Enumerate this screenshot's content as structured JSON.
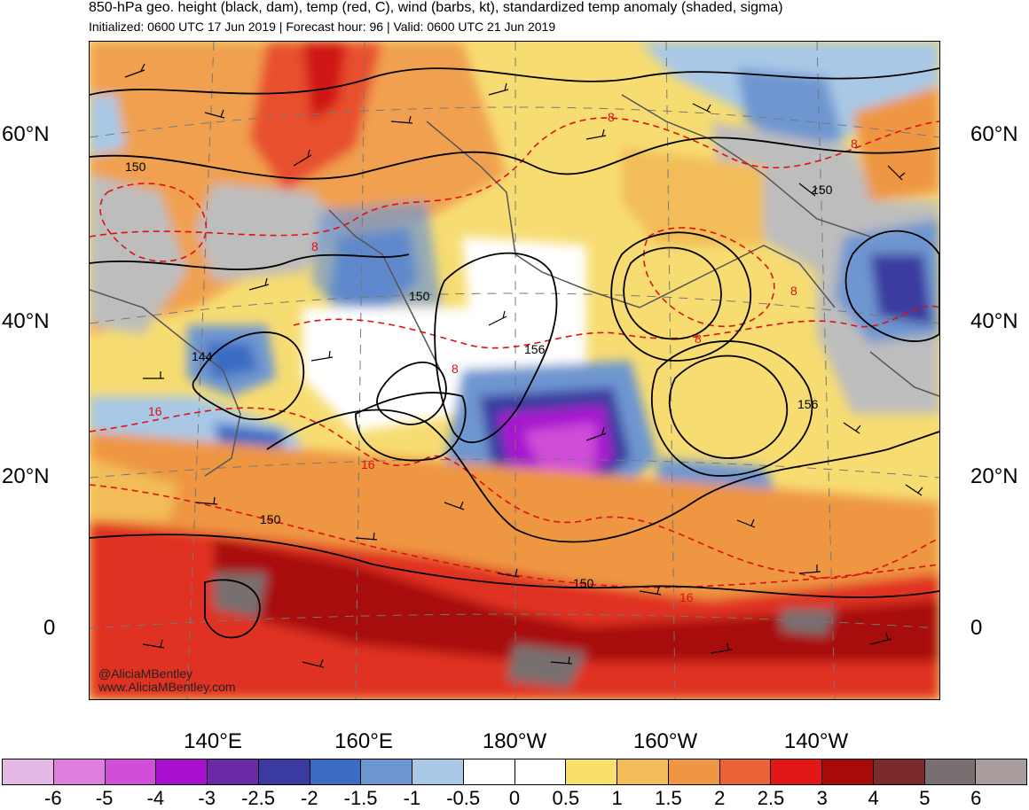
{
  "title": "850-hPa geo. height (black, dam), temp (red, C), wind (barbs, kt), standardized temp anomaly (shaded, sigma)",
  "subtitle": "Initialized: 0600 UTC 17 Jun 2019 | Forecast hour: 96 | Valid: 0600 UTC 21 Jun 2019",
  "lat_labels": [
    "60°N",
    "40°N",
    "20°N",
    "0"
  ],
  "lon_labels": [
    "140°E",
    "160°E",
    "180°W",
    "160°W",
    "140°W"
  ],
  "credit": {
    "handle": "@AliciaMBentley",
    "site": "www.AliciaMBentley.com"
  },
  "contour_labels": {
    "height": [
      "150",
      "150",
      "144",
      "156",
      "156",
      "150",
      "150",
      "150"
    ],
    "temp": [
      "8",
      "8",
      "16",
      "16",
      "8",
      "8",
      "8",
      "16",
      "8"
    ]
  },
  "colorbar": {
    "colors": [
      "#e6b8e6",
      "#e07ee0",
      "#d04ed8",
      "#a812cf",
      "#6a2aa6",
      "#3a3aa0",
      "#3a6cc4",
      "#6e96d0",
      "#a8c8e6",
      "#ffffff",
      "#ffffff",
      "#f8e06a",
      "#f2bd58",
      "#ee9642",
      "#ea6438",
      "#e21818",
      "#a80a0a",
      "#7a2a2a",
      "#787070",
      "#a89c9c"
    ],
    "labels": [
      "-6",
      "-5",
      "-4",
      "-3",
      "-2.5",
      "-2",
      "-1.5",
      "-1",
      "-0.5",
      "0",
      "0.5",
      "1",
      "1.5",
      "2",
      "2.5",
      "3",
      "4",
      "5",
      "6"
    ]
  }
}
